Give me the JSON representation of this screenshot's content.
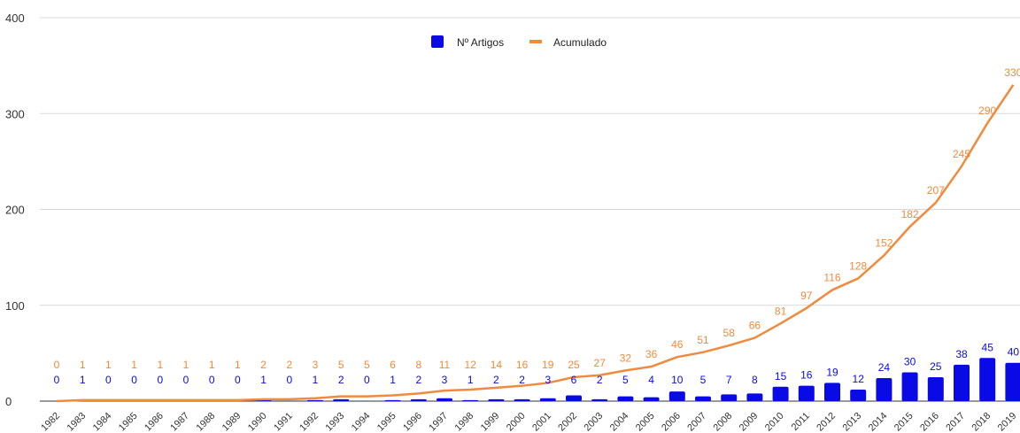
{
  "chart_data": {
    "type": "bar",
    "title": "",
    "xlabel": "",
    "ylabel": "",
    "ylim": [
      0,
      400
    ],
    "yticks": [
      "0",
      "100",
      "200",
      "300",
      "400"
    ],
    "grid": true,
    "legend_position": "top-center",
    "colors": {
      "bars": "#0a0ae6",
      "line": "#f08a3c",
      "grid": "#d9d9d9"
    },
    "categories": [
      "1982",
      "1983",
      "1984",
      "1985",
      "1986",
      "1987",
      "1988",
      "1989",
      "1990",
      "1991",
      "1992",
      "1993",
      "1994",
      "1995",
      "1996",
      "1997",
      "1998",
      "1999",
      "2000",
      "2001",
      "2002",
      "2003",
      "2004",
      "2005",
      "2006",
      "2007",
      "2008",
      "2009",
      "2010",
      "2011",
      "2012",
      "2013",
      "2014",
      "2015",
      "2016",
      "2017",
      "2018",
      "2019"
    ],
    "series": [
      {
        "name": "Nº Artigos",
        "kind": "bar",
        "values": [
          0,
          1,
          0,
          0,
          0,
          0,
          0,
          0,
          1,
          0,
          1,
          2,
          0,
          1,
          2,
          3,
          1,
          2,
          2,
          3,
          6,
          2,
          5,
          4,
          10,
          5,
          7,
          8,
          15,
          16,
          19,
          12,
          24,
          30,
          25,
          38,
          45,
          40
        ]
      },
      {
        "name": "Acumulado",
        "kind": "line",
        "values": [
          0,
          1,
          1,
          1,
          1,
          1,
          1,
          1,
          2,
          2,
          3,
          5,
          5,
          6,
          8,
          11,
          12,
          14,
          16,
          19,
          25,
          27,
          32,
          36,
          46,
          51,
          58,
          66,
          81,
          97,
          116,
          128,
          152,
          182,
          207,
          245,
          290,
          330
        ]
      }
    ]
  }
}
